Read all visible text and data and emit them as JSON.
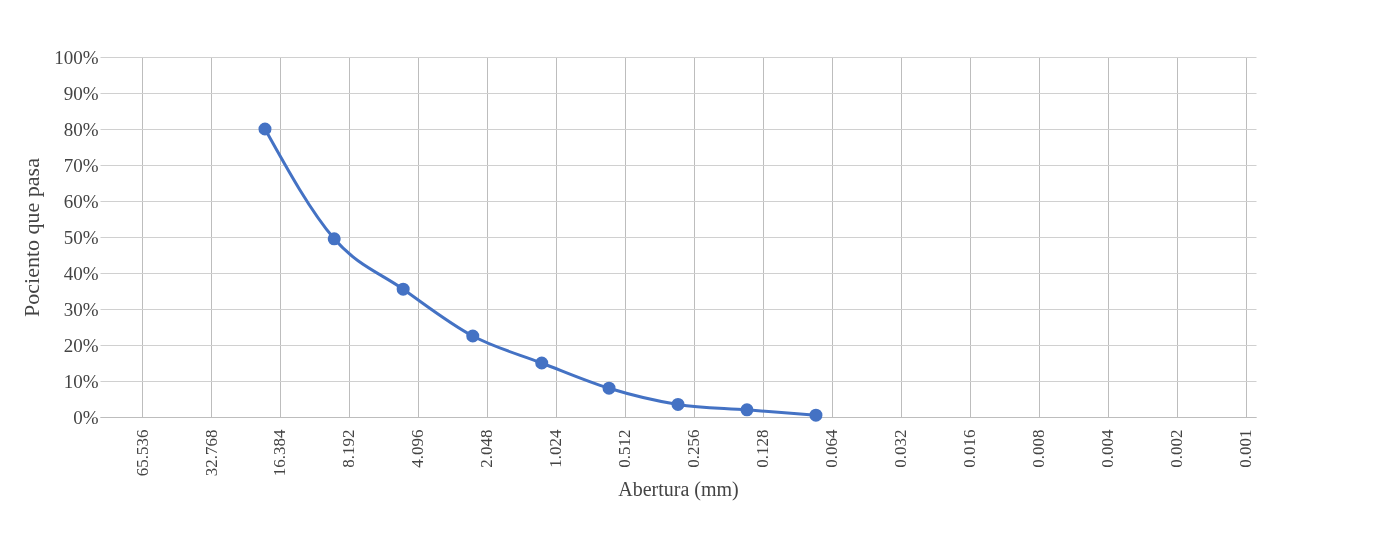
{
  "chart_data": {
    "type": "line",
    "xlabel": "Abertura (mm)",
    "ylabel": "Pociento que pasa",
    "x": [
      19.05,
      9.5,
      4.75,
      2.36,
      1.18,
      0.6,
      0.3,
      0.15,
      0.075
    ],
    "series": [
      {
        "color": "#4472c4",
        "values": [
          80,
          49.5,
          35.5,
          22.5,
          15,
          8,
          3.5,
          2,
          0.5
        ]
      }
    ],
    "log": "x",
    "xlim": [
      100,
      0.0009
    ],
    "xticks": [
      65.536,
      32.768,
      16.384,
      8.192,
      4.096,
      2.048,
      1.024,
      0.512,
      0.256,
      0.128,
      0.064,
      0.032,
      0.016,
      0.008,
      0.004,
      0.002,
      0.001
    ],
    "ylim": [
      0,
      100
    ],
    "yticks": [
      {
        "value": 0,
        "label": "0%"
      },
      {
        "value": 10,
        "label": "10%"
      },
      {
        "value": 20,
        "label": "20%"
      },
      {
        "value": 30,
        "label": "30%"
      },
      {
        "value": 40,
        "label": "40%"
      },
      {
        "value": 50,
        "label": "50%"
      },
      {
        "value": 60,
        "label": "60%"
      },
      {
        "value": 70,
        "label": "70%"
      },
      {
        "value": 80,
        "label": "80%"
      },
      {
        "value": 90,
        "label": "90%"
      },
      {
        "value": 100,
        "label": "100%"
      }
    ],
    "grid": true,
    "marker": "circle",
    "line_style": "solid"
  }
}
